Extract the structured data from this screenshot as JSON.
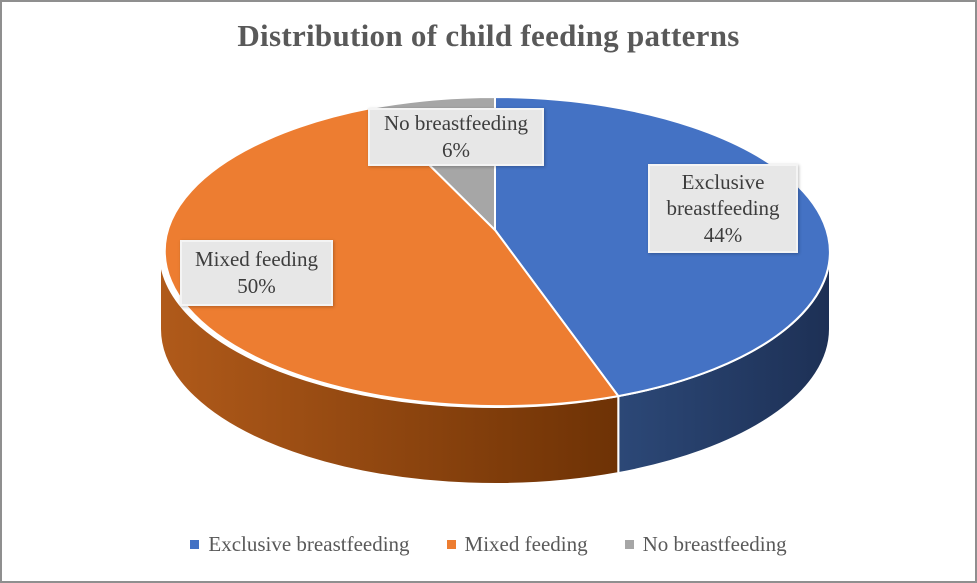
{
  "chart_data": {
    "type": "pie",
    "three_d": true,
    "title": "Distribution of child feeding patterns",
    "title_color": "#595959",
    "legend_position": "bottom",
    "legend_text_color": "#595959",
    "label_box": {
      "bg": "#e7e7e7",
      "border": "#f4f4f4",
      "text_color": "#3d3d3d"
    },
    "slices": [
      {
        "label": "Exclusive breastfeeding",
        "value": 44,
        "pct_label": "44%",
        "color": "#4472c4",
        "side_colors": [
          "#2c4877",
          "#1d3055"
        ]
      },
      {
        "label": "Mixed feeding",
        "value": 50,
        "pct_label": "50%",
        "color": "#ed7d31",
        "side_colors": [
          "#b05a1a",
          "#6e3205"
        ]
      },
      {
        "label": "No breastfeeding",
        "value": 6,
        "pct_label": "6%",
        "color": "#a6a6a6",
        "side_colors": [
          "#7f7f7f",
          "#6b6b6b"
        ]
      }
    ]
  }
}
